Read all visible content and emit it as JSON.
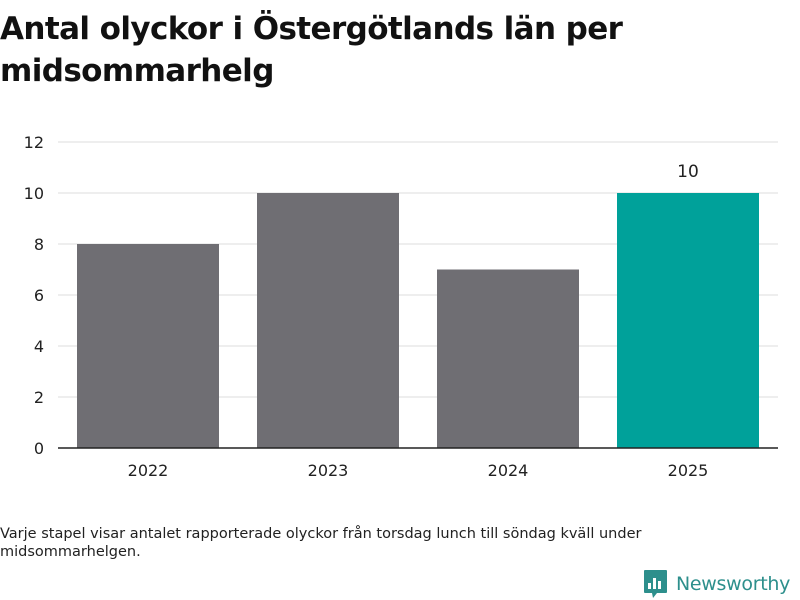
{
  "title": "Antal olyckor i Östergötlands län per midsommarhelg",
  "footnote": "Varje stapel visar antalet rapporterade olyckor från torsdag lunch till söndag kväll under midsommarhelgen.",
  "brand": {
    "name": "Newsworthy",
    "icon": "newsworthy-logo-icon",
    "color": "#2d8f8c"
  },
  "chart_data": {
    "type": "bar",
    "categories": [
      "2022",
      "2023",
      "2024",
      "2025"
    ],
    "values": [
      8,
      10,
      7,
      10
    ],
    "ylim": [
      0,
      12
    ],
    "yticks": [
      0,
      2,
      4,
      6,
      8,
      10,
      12
    ],
    "grid": true,
    "colors": {
      "default": "#6f6e73",
      "highlight": "#00a19a",
      "grid": "#dddddd",
      "axis": "#222222",
      "tick_label": "#222222"
    },
    "highlight_category": "2025",
    "value_labels": [
      {
        "category": "2025",
        "text": "10"
      }
    ]
  }
}
